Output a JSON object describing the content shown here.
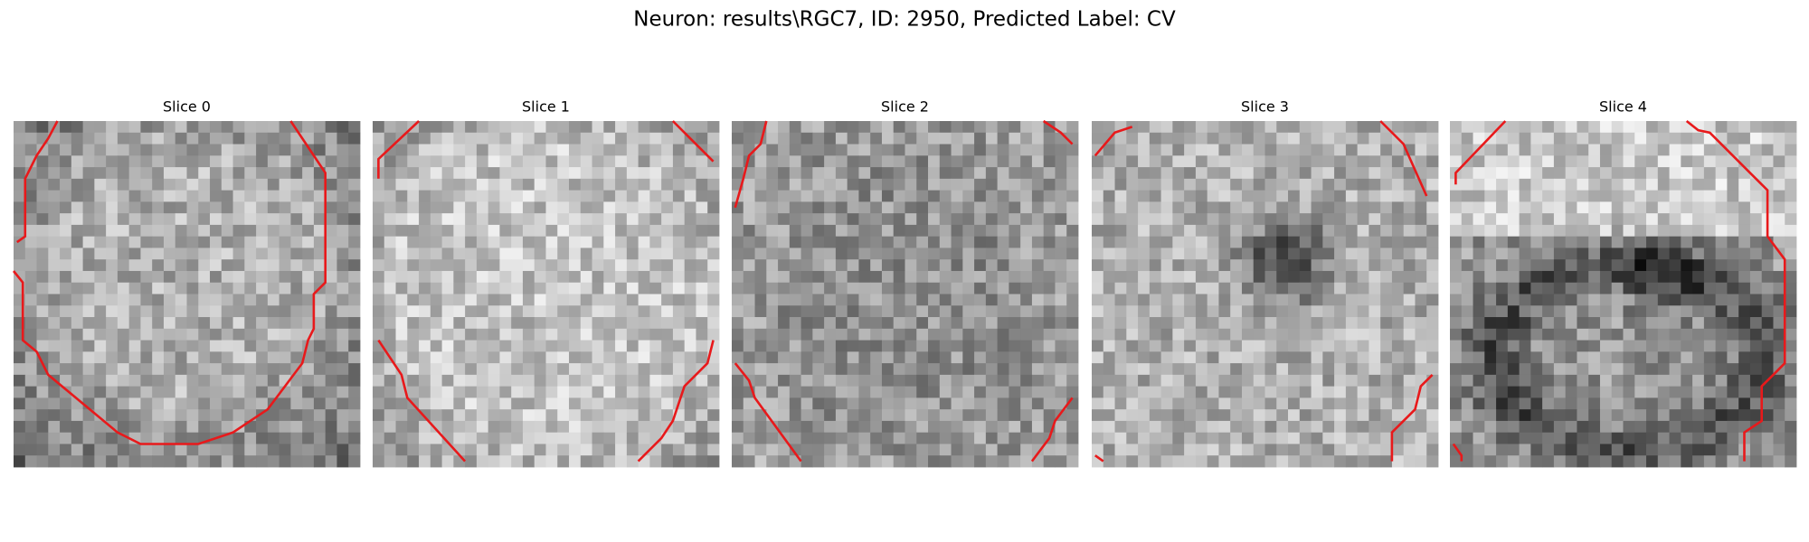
{
  "title": "Neuron: results\\RGC7, ID: 2950, Predicted Label: CV",
  "panels": [
    {
      "title": "Slice 0"
    },
    {
      "title": "Slice 1"
    },
    {
      "title": "Slice 2"
    },
    {
      "title": "Slice 3"
    },
    {
      "title": "Slice 4"
    }
  ]
}
